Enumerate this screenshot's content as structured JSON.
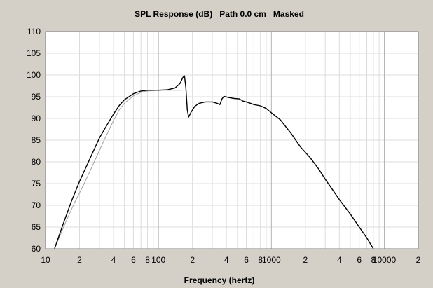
{
  "chart_data": {
    "type": "line",
    "title": "SPL Response (dB)   Path 0.0 cm   Masked",
    "xlabel": "Frequency (hertz)",
    "ylabel": "",
    "x_scale": "log",
    "xlim": [
      10,
      20000
    ],
    "ylim": [
      60,
      110
    ],
    "grid": true,
    "y_ticks": [
      60,
      65,
      70,
      75,
      80,
      85,
      90,
      95,
      100,
      105,
      110
    ],
    "x_ticks": [
      {
        "value": 10,
        "label": "10"
      },
      {
        "value": 20,
        "label": "2"
      },
      {
        "value": 40,
        "label": "4"
      },
      {
        "value": 60,
        "label": "6"
      },
      {
        "value": 80,
        "label": "8"
      },
      {
        "value": 100,
        "label": "100"
      },
      {
        "value": 200,
        "label": "2"
      },
      {
        "value": 400,
        "label": "4"
      },
      {
        "value": 600,
        "label": "6"
      },
      {
        "value": 800,
        "label": "8"
      },
      {
        "value": 1000,
        "label": "1000"
      },
      {
        "value": 2000,
        "label": "2"
      },
      {
        "value": 4000,
        "label": "4"
      },
      {
        "value": 6000,
        "label": "6"
      },
      {
        "value": 8000,
        "label": "8"
      },
      {
        "value": 10000,
        "label": "10000"
      },
      {
        "value": 20000,
        "label": "2"
      }
    ],
    "series": [
      {
        "color": "#000000",
        "points": [
          [
            12,
            60
          ],
          [
            14,
            65
          ],
          [
            17,
            71
          ],
          [
            20,
            75.5
          ],
          [
            25,
            81
          ],
          [
            30,
            85.5
          ],
          [
            35,
            88.5
          ],
          [
            40,
            91
          ],
          [
            45,
            93
          ],
          [
            50,
            94.3
          ],
          [
            60,
            95.7
          ],
          [
            70,
            96.3
          ],
          [
            80,
            96.5
          ],
          [
            100,
            96.5
          ],
          [
            120,
            96.6
          ],
          [
            140,
            97
          ],
          [
            155,
            98
          ],
          [
            165,
            99.5
          ],
          [
            170,
            99.8
          ],
          [
            175,
            97
          ],
          [
            180,
            92
          ],
          [
            185,
            90.3
          ],
          [
            195,
            91.5
          ],
          [
            210,
            92.8
          ],
          [
            230,
            93.5
          ],
          [
            260,
            93.8
          ],
          [
            300,
            93.8
          ],
          [
            330,
            93.5
          ],
          [
            350,
            93.2
          ],
          [
            365,
            94.5
          ],
          [
            380,
            95.1
          ],
          [
            420,
            94.8
          ],
          [
            470,
            94.6
          ],
          [
            520,
            94.5
          ],
          [
            560,
            94
          ],
          [
            600,
            93.8
          ],
          [
            650,
            93.5
          ],
          [
            700,
            93.2
          ],
          [
            800,
            92.9
          ],
          [
            900,
            92.3
          ],
          [
            1000,
            91.3
          ],
          [
            1200,
            89.7
          ],
          [
            1500,
            86.5
          ],
          [
            1800,
            83.5
          ],
          [
            2200,
            81
          ],
          [
            2600,
            78.5
          ],
          [
            3000,
            76
          ],
          [
            3500,
            73.5
          ],
          [
            4000,
            71.3
          ],
          [
            5000,
            68
          ],
          [
            6000,
            65
          ],
          [
            7000,
            62.5
          ],
          [
            8000,
            60
          ]
        ]
      },
      {
        "color": "#a0a0a0",
        "points": [
          [
            12,
            60
          ],
          [
            15,
            66
          ],
          [
            18,
            70.5
          ],
          [
            22,
            75
          ],
          [
            27,
            80
          ],
          [
            33,
            85
          ],
          [
            40,
            89.5
          ],
          [
            45,
            92
          ],
          [
            50,
            93.5
          ],
          [
            60,
            95.2
          ],
          [
            70,
            96
          ],
          [
            80,
            96.3
          ],
          [
            100,
            96.5
          ],
          [
            130,
            96.5
          ],
          [
            160,
            96.5
          ]
        ]
      }
    ]
  }
}
